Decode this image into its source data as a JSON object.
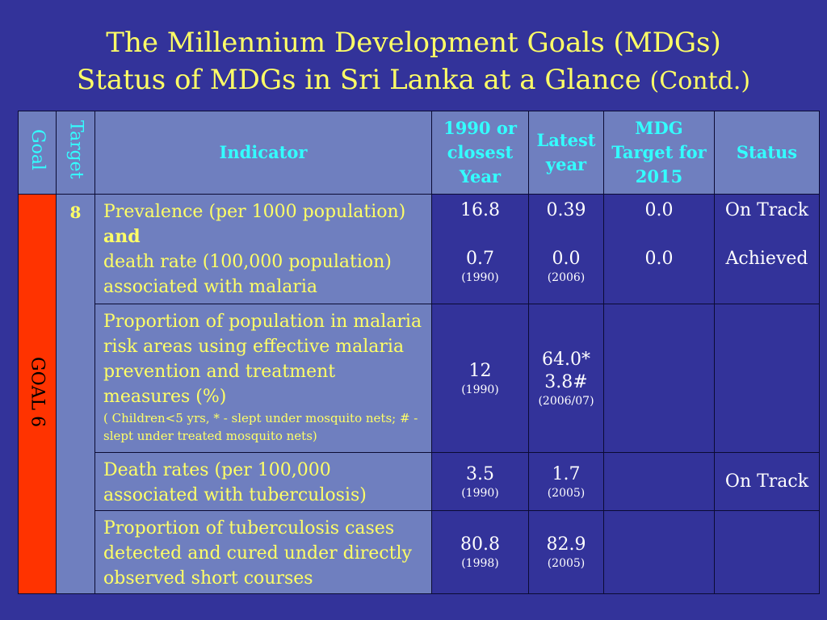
{
  "title": {
    "line1": "The Millennium Development Goals (MDGs)",
    "line2": "Status of MDGs in Sri Lanka at a Glance",
    "line2_suffix": "(Contd.)"
  },
  "table": {
    "headers": {
      "goal": "Goal",
      "target": "Target",
      "indicator": "Indicator",
      "y1990": "1990 or closest Year",
      "latest": "Latest year",
      "mdg": "MDG Target for 2015",
      "status": "Status"
    },
    "goal_label": "GOAL 6",
    "target_number": "8",
    "rows": [
      {
        "indicator_a": "Prevalence (per 1000 population)",
        "indicator_and": "and",
        "indicator_b": "death rate (100,000 population) associated with malaria",
        "v1990_a": "16.8",
        "v1990_b": "0.7",
        "v1990_year": "(1990)",
        "latest_a": "0.39",
        "latest_b": "0.0",
        "latest_year": "(2006)",
        "mdg_a": "0.0",
        "mdg_b": "0.0",
        "status_a": "On Track",
        "status_b": "Achieved"
      },
      {
        "indicator": "Proportion of population in malaria risk areas using effective malaria prevention and treatment measures (%)",
        "note": "( Children<5 yrs, * - slept  under mosquito nets; # - slept  under treated mosquito nets)",
        "v1990": "12",
        "v1990_year": "(1990)",
        "latest_a": "64.0*",
        "latest_b": "3.8#",
        "latest_year": "(2006/07)",
        "mdg": "",
        "status": ""
      },
      {
        "indicator": "Death rates (per 100,000 associated with tuberculosis)",
        "v1990": "3.5",
        "v1990_year": "(1990)",
        "latest": "1.7",
        "latest_year": "(2005)",
        "mdg": "",
        "status": "On Track"
      },
      {
        "indicator": "Proportion of tuberculosis cases detected and cured under directly observed short courses",
        "v1990": "80.8",
        "v1990_year": "(1998)",
        "latest": "82.9",
        "latest_year": "(2005)",
        "mdg": "",
        "status": ""
      }
    ]
  },
  "colors": {
    "background": "#33339a",
    "title": "#ffff66",
    "header_text": "#33ffff",
    "cell_light": "#6f7fbf",
    "goal_cell": "#ff3300"
  }
}
